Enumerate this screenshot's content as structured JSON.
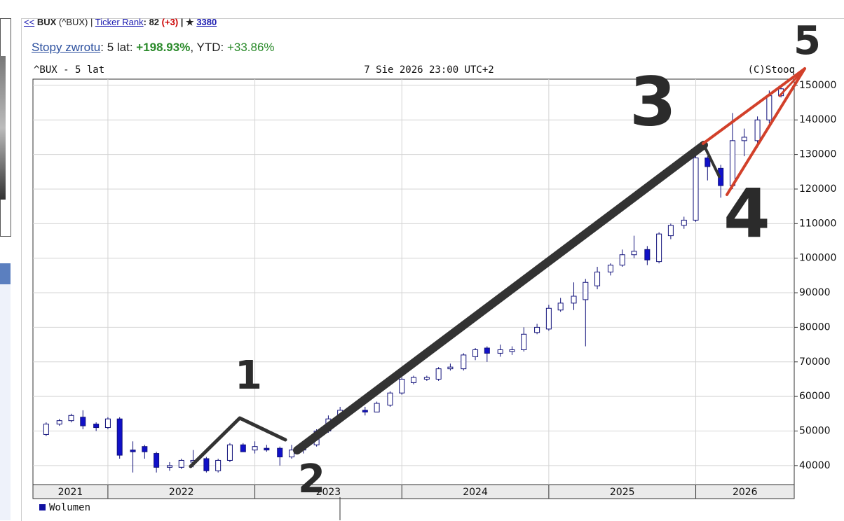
{
  "header": {
    "back": "<<",
    "symbol": "BUX",
    "full": "(^BUX) |",
    "rank_link": "Ticker Rank",
    "rank": ": 82",
    "rank_change": "(+3)",
    "star": "| ★",
    "count": "3380"
  },
  "returns": {
    "link": "Stopy zwrotu",
    "label": ": 5 lat: ",
    "five_year": "+198.93%",
    "ytd_label": ", YTD: ",
    "ytd": "+33.86%"
  },
  "chart_data": {
    "type": "candlestick",
    "title": "^BUX - 5 lat",
    "date": "7 Sie 2026 23:00 UTC+2",
    "credit": "(C)Stooq",
    "x": [
      2021.58,
      2021.67,
      2021.75,
      2021.83,
      2021.92,
      2022.0,
      2022.08,
      2022.17,
      2022.25,
      2022.33,
      2022.42,
      2022.5,
      2022.58,
      2022.67,
      2022.75,
      2022.83,
      2022.92,
      2023.0,
      2023.08,
      2023.17,
      2023.25,
      2023.33,
      2023.42,
      2023.5,
      2023.58,
      2023.67,
      2023.75,
      2023.83,
      2023.92,
      2024.0,
      2024.08,
      2024.17,
      2024.25,
      2024.33,
      2024.42,
      2024.5,
      2024.58,
      2024.67,
      2024.75,
      2024.83,
      2024.92,
      2025.0,
      2025.08,
      2025.17,
      2025.25,
      2025.33,
      2025.42,
      2025.5,
      2025.58,
      2025.67,
      2025.75,
      2025.83,
      2025.92,
      2026.0,
      2026.08,
      2026.17,
      2026.25,
      2026.33,
      2026.42,
      2026.5,
      2026.58
    ],
    "open": [
      49000,
      52000,
      53000,
      54000,
      52000,
      51000,
      53500,
      44500,
      45500,
      43500,
      39500,
      39500,
      41000,
      42000,
      38500,
      41500,
      46000,
      44500,
      45000,
      45000,
      42500,
      44500,
      46000,
      50000,
      53500,
      57000,
      56000,
      55500,
      57500,
      61000,
      64000,
      65000,
      65000,
      68000,
      68000,
      71500,
      74000,
      72500,
      73000,
      73500,
      78500,
      79500,
      85000,
      87000,
      88000,
      92000,
      96000,
      98000,
      101000,
      102500,
      99000,
      106500,
      109500,
      111000,
      129000,
      126000,
      121000,
      134000,
      134000,
      140000,
      147000
    ],
    "high": [
      52500,
      53500,
      55000,
      56000,
      52500,
      54000,
      54000,
      47000,
      46000,
      44000,
      41000,
      42000,
      44500,
      42500,
      42000,
      46500,
      46500,
      47000,
      46000,
      45500,
      46000,
      47000,
      50500,
      54500,
      57000,
      58000,
      57000,
      58500,
      61500,
      65500,
      66000,
      66000,
      68500,
      69500,
      72500,
      74000,
      74500,
      75000,
      74500,
      80000,
      81000,
      86500,
      88500,
      93000,
      94000,
      97500,
      98500,
      102500,
      106500,
      103500,
      107500,
      110000,
      112000,
      130000,
      129500,
      127000,
      142000,
      137500,
      141000,
      148500,
      150000
    ],
    "low": [
      48500,
      51500,
      52500,
      50500,
      50000,
      50500,
      42000,
      38000,
      42000,
      38000,
      38500,
      39000,
      39500,
      38000,
      38000,
      41000,
      44000,
      43500,
      44000,
      40000,
      42000,
      43500,
      45500,
      49500,
      52500,
      55500,
      54500,
      55500,
      57000,
      60500,
      63500,
      64500,
      64500,
      67500,
      67500,
      70500,
      70000,
      71500,
      72000,
      73000,
      78000,
      79000,
      84500,
      85000,
      74500,
      91000,
      95000,
      97500,
      100000,
      98000,
      98500,
      105500,
      108500,
      110500,
      122500,
      117500,
      120000,
      129500,
      132000,
      139000,
      146500
    ],
    "close": [
      52000,
      53000,
      54500,
      51500,
      51000,
      53500,
      43000,
      44000,
      44000,
      39500,
      40000,
      41500,
      41500,
      38500,
      41500,
      46000,
      44000,
      45500,
      44500,
      42500,
      44500,
      46000,
      50000,
      53500,
      56000,
      56000,
      55500,
      58000,
      61000,
      65000,
      65500,
      65500,
      68000,
      68500,
      72000,
      73500,
      72500,
      73500,
      73500,
      78000,
      80000,
      85500,
      87000,
      89000,
      93000,
      96000,
      98000,
      101000,
      102000,
      99500,
      107000,
      109500,
      111000,
      129000,
      126500,
      121000,
      134000,
      135000,
      140000,
      147000,
      149000
    ],
    "up_color": "#ffffff",
    "down_color": "#1010c8",
    "edge_color": "#10107a",
    "xlim": [
      2021.49,
      2026.67
    ],
    "xticks": [
      2022,
      2023,
      2024,
      2025,
      2026
    ],
    "x_labels": [
      "2021",
      "2022",
      "2023",
      "2024",
      "2025",
      "2026"
    ],
    "ylim": [
      34500,
      151800
    ],
    "yticks": [
      40000,
      50000,
      60000,
      70000,
      80000,
      90000,
      100000,
      110000,
      120000,
      130000,
      140000,
      150000
    ],
    "grid": true,
    "volume_label": "Wolumen",
    "annotations": [
      "1",
      "2",
      "3",
      "4",
      "5"
    ]
  }
}
